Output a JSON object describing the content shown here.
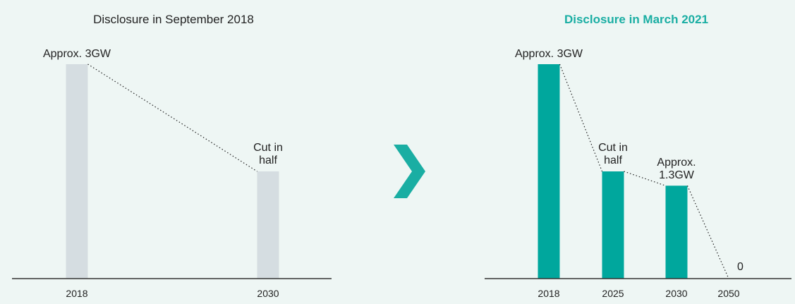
{
  "colors": {
    "background": "#eef6f4",
    "old_bar": "#d5dde1",
    "new_bar": "#00a79d",
    "title_accent": "#1aaea3",
    "text": "#222222",
    "axis": "#333333"
  },
  "divider_icon": "chevron-right-icon",
  "chart_data": [
    {
      "type": "bar",
      "title": "Disclosure in September 2018",
      "categories": [
        "2018",
        "2030"
      ],
      "values": [
        3,
        1.5
      ],
      "value_labels": [
        "Approx. 3GW",
        "Cut in half"
      ],
      "unit": "GW",
      "ylim": [
        0,
        3
      ],
      "trend_line": "dotted",
      "grid": false
    },
    {
      "type": "bar",
      "title": "Disclosure in March 2021",
      "categories": [
        "2018",
        "2025",
        "2030",
        "2050"
      ],
      "values": [
        3,
        1.5,
        1.3,
        0
      ],
      "value_labels": [
        "Approx. 3GW",
        "Cut in half",
        "Approx. 1.3GW",
        "0"
      ],
      "unit": "GW",
      "ylim": [
        0,
        3
      ],
      "trend_line": "dotted",
      "grid": false
    }
  ]
}
